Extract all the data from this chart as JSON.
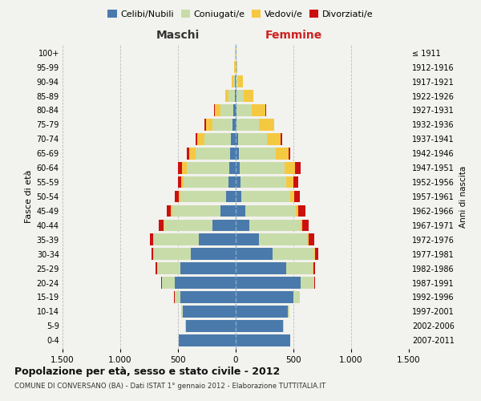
{
  "age_groups": [
    "0-4",
    "5-9",
    "10-14",
    "15-19",
    "20-24",
    "25-29",
    "30-34",
    "35-39",
    "40-44",
    "45-49",
    "50-54",
    "55-59",
    "60-64",
    "65-69",
    "70-74",
    "75-79",
    "80-84",
    "85-89",
    "90-94",
    "95-99",
    "100+"
  ],
  "birth_years": [
    "2007-2011",
    "2002-2006",
    "1997-2001",
    "1992-1996",
    "1987-1991",
    "1982-1986",
    "1977-1981",
    "1972-1976",
    "1967-1971",
    "1962-1966",
    "1957-1961",
    "1952-1956",
    "1947-1951",
    "1942-1946",
    "1937-1941",
    "1932-1936",
    "1927-1931",
    "1922-1926",
    "1917-1921",
    "1912-1916",
    "≤ 1911"
  ],
  "male_celibi": [
    490,
    430,
    460,
    480,
    530,
    480,
    390,
    320,
    200,
    130,
    80,
    60,
    55,
    50,
    40,
    30,
    20,
    10,
    5,
    3,
    2
  ],
  "male_coniugati": [
    2,
    5,
    10,
    50,
    110,
    200,
    320,
    390,
    420,
    420,
    400,
    390,
    370,
    300,
    230,
    170,
    110,
    50,
    15,
    4,
    2
  ],
  "male_vedovi": [
    0,
    0,
    1,
    1,
    2,
    2,
    2,
    5,
    5,
    10,
    15,
    20,
    40,
    55,
    65,
    60,
    50,
    30,
    15,
    4,
    1
  ],
  "male_divorziati": [
    0,
    0,
    1,
    2,
    5,
    10,
    20,
    30,
    40,
    40,
    30,
    30,
    35,
    20,
    15,
    8,
    5,
    2,
    1,
    0,
    0
  ],
  "female_celibi": [
    470,
    410,
    450,
    500,
    560,
    440,
    320,
    200,
    120,
    80,
    50,
    40,
    35,
    30,
    20,
    10,
    8,
    5,
    3,
    2,
    1
  ],
  "female_coniugati": [
    2,
    5,
    15,
    55,
    120,
    230,
    360,
    420,
    440,
    440,
    420,
    400,
    390,
    320,
    250,
    190,
    130,
    65,
    20,
    5,
    2
  ],
  "female_vedovi": [
    0,
    0,
    1,
    2,
    3,
    3,
    5,
    10,
    15,
    25,
    40,
    60,
    90,
    110,
    120,
    130,
    120,
    80,
    40,
    10,
    3
  ],
  "female_divorziati": [
    0,
    0,
    1,
    2,
    5,
    15,
    30,
    50,
    55,
    60,
    45,
    40,
    50,
    15,
    10,
    5,
    5,
    2,
    1,
    0,
    0
  ],
  "colors": {
    "celibi": "#4a7aac",
    "coniugati": "#c8dcaa",
    "vedovi": "#f5c842",
    "divorziati": "#cc1010"
  },
  "xlim": 1500,
  "title": "Popolazione per età, sesso e stato civile - 2012",
  "subtitle": "COMUNE DI CONVERSANO (BA) - Dati ISTAT 1° gennaio 2012 - Elaborazione TUTTITALIA.IT",
  "ylabel_left": "Fasce di età",
  "ylabel_right": "Anni di nascita",
  "xlabel_left": "Maschi",
  "xlabel_right": "Femmine",
  "bg_color": "#f2f2ee"
}
